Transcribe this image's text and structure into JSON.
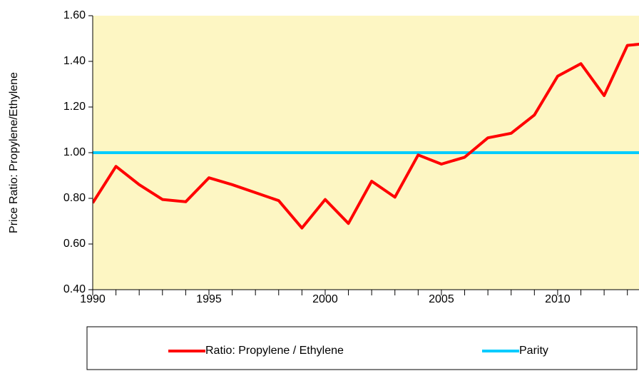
{
  "chart_data": {
    "type": "line",
    "ylabel": "Price Ratio: Propylene/Ethylene",
    "series": [
      {
        "name": "Ratio:  Propylene / Ethylene",
        "color": "#ff0000",
        "x": [
          1990,
          1991,
          1992,
          1993,
          1994,
          1995,
          1996,
          1997,
          1998,
          1999,
          2000,
          2001,
          2002,
          2003,
          2004,
          2005,
          2006,
          2007,
          2008,
          2009,
          2010,
          2011,
          2012,
          2013,
          2014
        ],
        "values": [
          0.78,
          0.94,
          0.86,
          0.795,
          0.785,
          0.89,
          0.86,
          0.825,
          0.79,
          0.67,
          0.795,
          0.69,
          0.875,
          0.805,
          0.99,
          0.95,
          0.98,
          1.065,
          1.085,
          1.165,
          1.335,
          1.39,
          1.25,
          1.47,
          1.48
        ]
      },
      {
        "name": "Parity",
        "color": "#00ccff",
        "x": [
          1990,
          2014
        ],
        "values": [
          1,
          1
        ]
      }
    ],
    "xlim": [
      1990,
      2013.5
    ],
    "xticks": [
      1990,
      1995,
      2000,
      2005,
      2010
    ],
    "xminorticks": [
      1991,
      1992,
      1993,
      1994,
      1996,
      1997,
      1998,
      1999,
      2001,
      2002,
      2003,
      2004,
      2006,
      2007,
      2008,
      2009,
      2011,
      2012,
      2013
    ],
    "ylim": [
      0.4,
      1.6
    ],
    "yticks": [
      {
        "value": 0.4,
        "label": "0.40"
      },
      {
        "value": 0.6,
        "label": "0.60"
      },
      {
        "value": 0.8,
        "label": "0.80"
      },
      {
        "value": 1.0,
        "label": "1.00"
      },
      {
        "value": 1.2,
        "label": "1.20"
      },
      {
        "value": 1.4,
        "label": "1.40"
      },
      {
        "value": 1.6,
        "label": "1.60"
      }
    ],
    "legend": "bottom"
  }
}
